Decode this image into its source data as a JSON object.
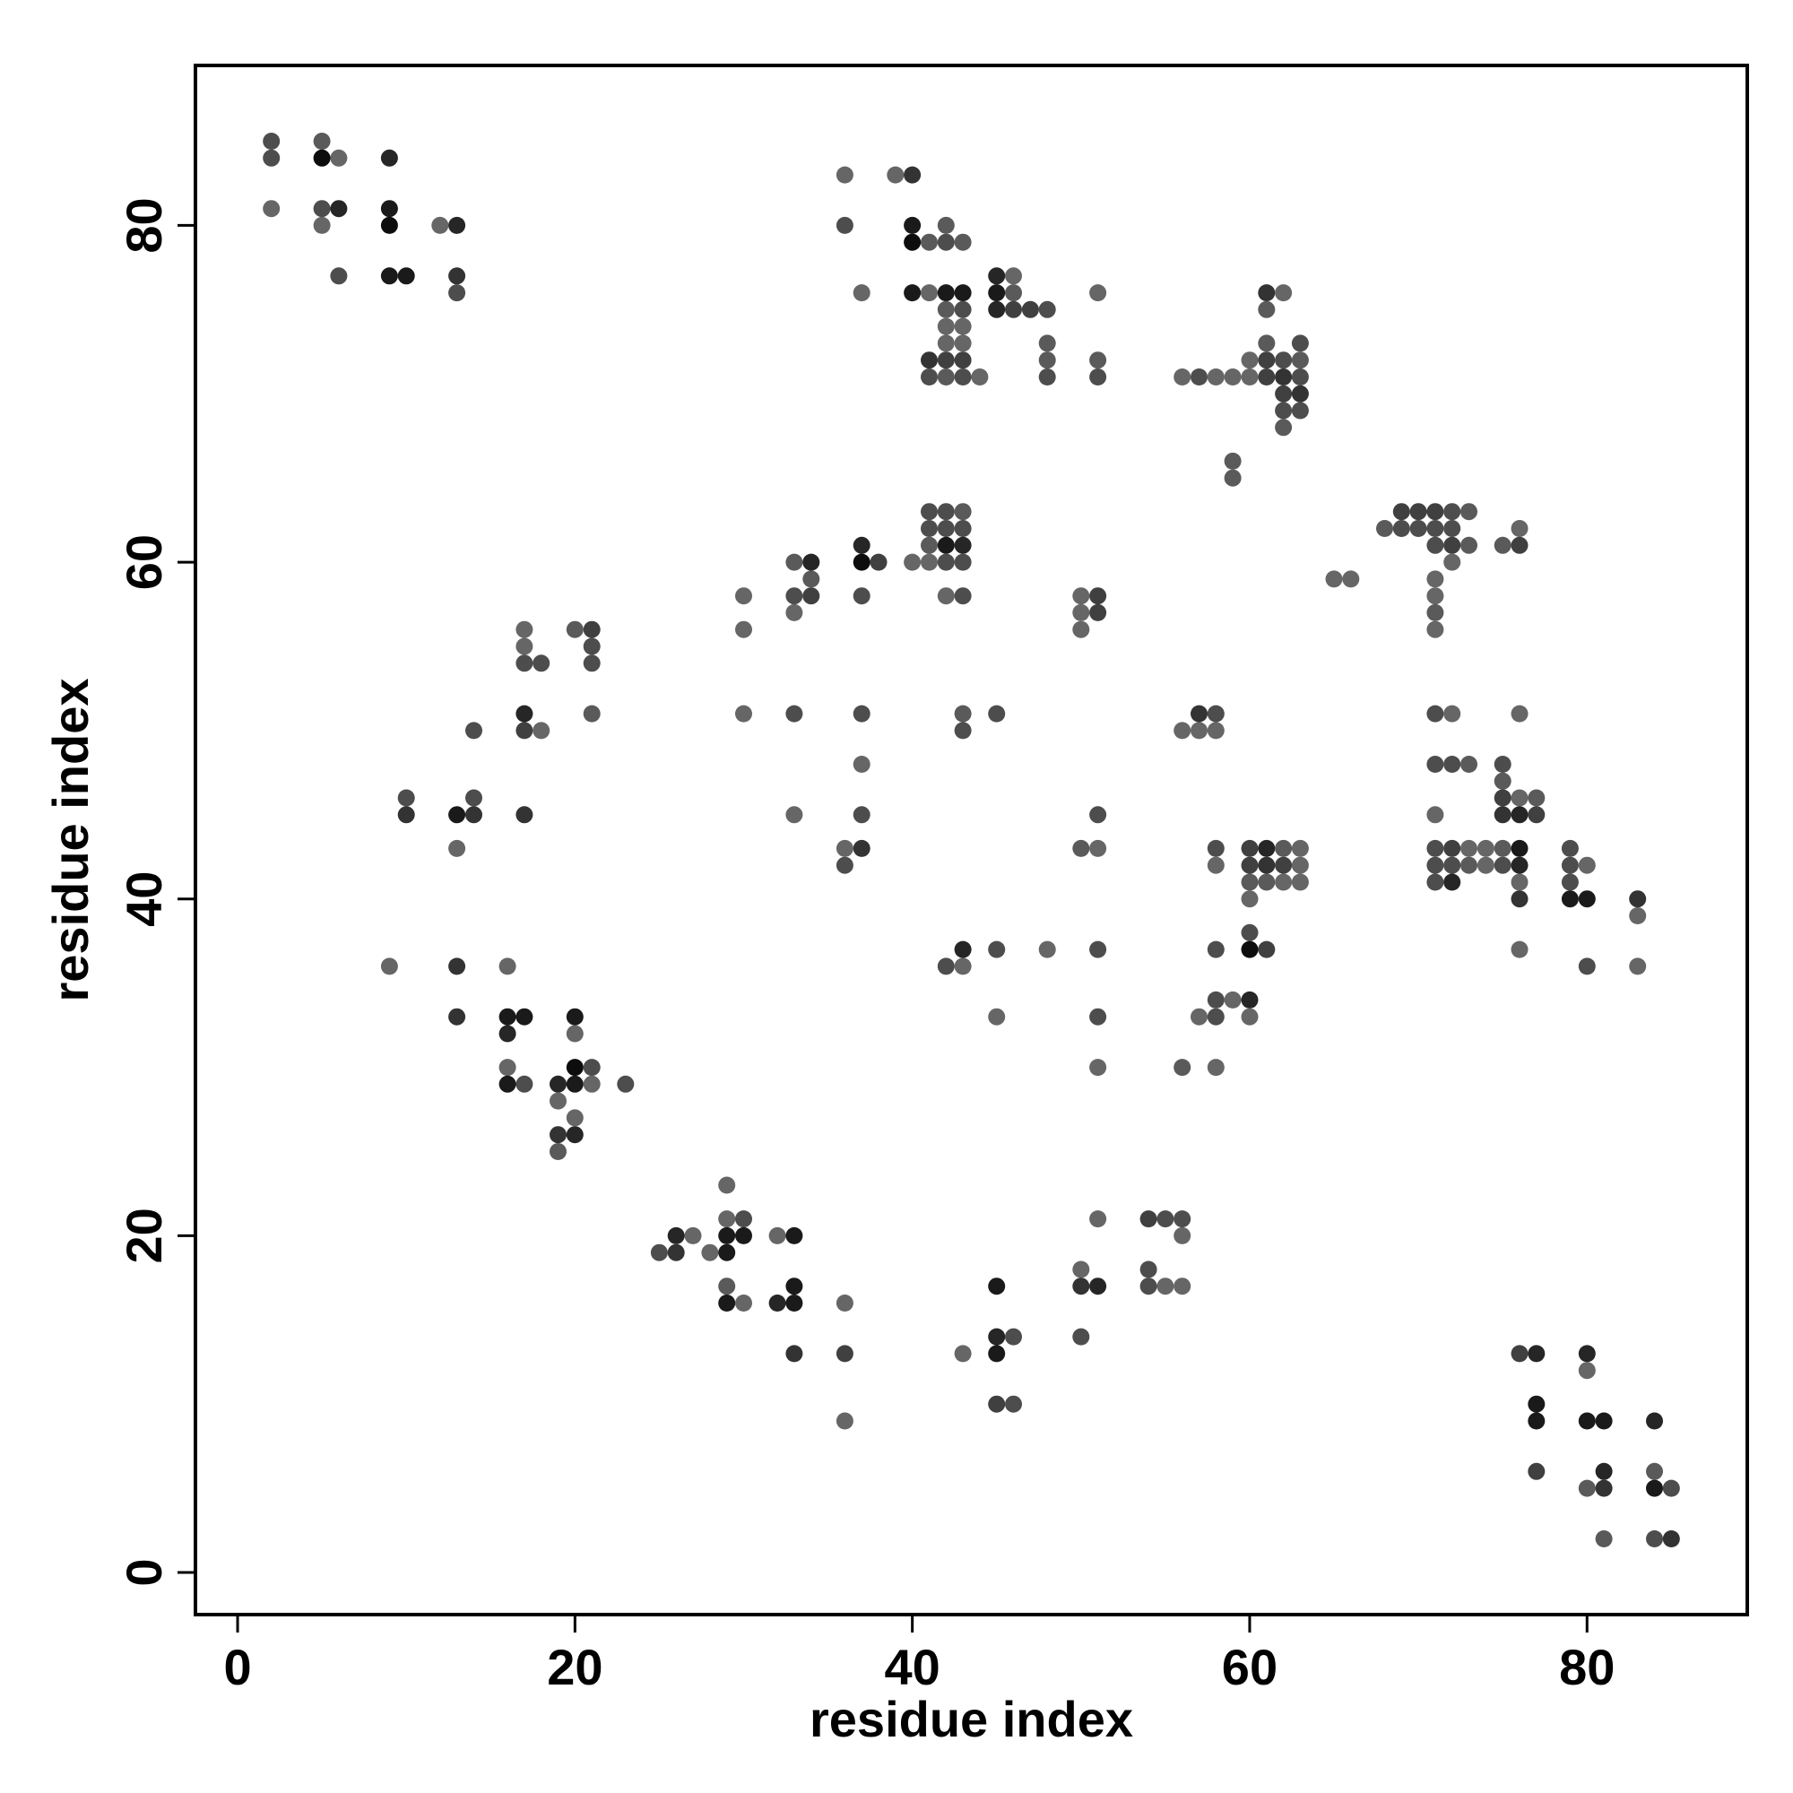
{
  "chart_data": {
    "type": "scatter",
    "title": "",
    "xlabel": "residue index",
    "ylabel": "residue index",
    "xlim": [
      -2.5,
      89.5
    ],
    "ylim": [
      -2.5,
      89.5
    ],
    "xticks": [
      0,
      20,
      40,
      60,
      80
    ],
    "yticks": [
      0,
      20,
      40,
      60,
      80
    ],
    "grid": false,
    "legend": "none",
    "shade_note": "gray level of each point: 0 = black, 1 = light gray",
    "points": [
      [
        2,
        85,
        0.6
      ],
      [
        2,
        84,
        0.6
      ],
      [
        2,
        81,
        0.8
      ],
      [
        5,
        85,
        0.7
      ],
      [
        5,
        84,
        0.1
      ],
      [
        5,
        81,
        0.6
      ],
      [
        5,
        80,
        0.8
      ],
      [
        6,
        84,
        0.8
      ],
      [
        6,
        81,
        0.3
      ],
      [
        6,
        77,
        0.6
      ],
      [
        9,
        84,
        0.3
      ],
      [
        9,
        81,
        0.2
      ],
      [
        9,
        80,
        0.1
      ],
      [
        9,
        77,
        0.2
      ],
      [
        10,
        77,
        0.2
      ],
      [
        12,
        80,
        0.8
      ],
      [
        13,
        80,
        0.3
      ],
      [
        13,
        77,
        0.4
      ],
      [
        13,
        76,
        0.6
      ],
      [
        36,
        83,
        0.8
      ],
      [
        36,
        80,
        0.6
      ],
      [
        37,
        76,
        0.8
      ],
      [
        39,
        83,
        0.8
      ],
      [
        40,
        83,
        0.4
      ],
      [
        40,
        80,
        0.2
      ],
      [
        40,
        79,
        0.1
      ],
      [
        40,
        76,
        0.2
      ],
      [
        41,
        79,
        0.7
      ],
      [
        41,
        76,
        0.8
      ],
      [
        42,
        80,
        0.7
      ],
      [
        42,
        79,
        0.6
      ],
      [
        42,
        76,
        0.2
      ],
      [
        42,
        75,
        0.7
      ],
      [
        42,
        74,
        0.8
      ],
      [
        42,
        73,
        0.8
      ],
      [
        42,
        72,
        0.5
      ],
      [
        42,
        71,
        0.7
      ],
      [
        41,
        72,
        0.4
      ],
      [
        41,
        71,
        0.6
      ],
      [
        43,
        79,
        0.7
      ],
      [
        43,
        76,
        0.2
      ],
      [
        43,
        75,
        0.6
      ],
      [
        43,
        74,
        0.8
      ],
      [
        43,
        73,
        0.8
      ],
      [
        43,
        72,
        0.5
      ],
      [
        43,
        71,
        0.6
      ],
      [
        44,
        71,
        0.8
      ],
      [
        45,
        77,
        0.3
      ],
      [
        45,
        76,
        0.2
      ],
      [
        45,
        75,
        0.3
      ],
      [
        46,
        77,
        0.8
      ],
      [
        46,
        76,
        0.7
      ],
      [
        46,
        75,
        0.5
      ],
      [
        47,
        75,
        0.5
      ],
      [
        48,
        75,
        0.6
      ],
      [
        48,
        73,
        0.7
      ],
      [
        48,
        72,
        0.7
      ],
      [
        48,
        71,
        0.6
      ],
      [
        51,
        76,
        0.8
      ],
      [
        51,
        72,
        0.7
      ],
      [
        51,
        71,
        0.6
      ],
      [
        56,
        71,
        0.8
      ],
      [
        57,
        71,
        0.6
      ],
      [
        58,
        71,
        0.8
      ],
      [
        59,
        71,
        0.8
      ],
      [
        59,
        66,
        0.7
      ],
      [
        59,
        65,
        0.7
      ],
      [
        60,
        72,
        0.8
      ],
      [
        60,
        71,
        0.8
      ],
      [
        61,
        76,
        0.4
      ],
      [
        61,
        75,
        0.7
      ],
      [
        61,
        73,
        0.7
      ],
      [
        61,
        72,
        0.5
      ],
      [
        61,
        71,
        0.5
      ],
      [
        62,
        76,
        0.8
      ],
      [
        62,
        72,
        0.6
      ],
      [
        62,
        71,
        0.4
      ],
      [
        62,
        70,
        0.5
      ],
      [
        62,
        69,
        0.6
      ],
      [
        62,
        68,
        0.7
      ],
      [
        63,
        73,
        0.6
      ],
      [
        63,
        72,
        0.7
      ],
      [
        63,
        71,
        0.6
      ],
      [
        63,
        70,
        0.4
      ],
      [
        63,
        69,
        0.6
      ],
      [
        41,
        63,
        0.6
      ],
      [
        41,
        62,
        0.6
      ],
      [
        41,
        61,
        0.7
      ],
      [
        41,
        60,
        0.8
      ],
      [
        40,
        60,
        0.8
      ],
      [
        42,
        63,
        0.6
      ],
      [
        42,
        62,
        0.6
      ],
      [
        42,
        61,
        0.2
      ],
      [
        42,
        60,
        0.6
      ],
      [
        42,
        58,
        0.8
      ],
      [
        43,
        63,
        0.7
      ],
      [
        43,
        62,
        0.6
      ],
      [
        43,
        61,
        0.3
      ],
      [
        43,
        60,
        0.6
      ],
      [
        43,
        58,
        0.6
      ],
      [
        30,
        58,
        0.8
      ],
      [
        30,
        56,
        0.8
      ],
      [
        33,
        60,
        0.7
      ],
      [
        33,
        58,
        0.6
      ],
      [
        33,
        57,
        0.8
      ],
      [
        34,
        60,
        0.3
      ],
      [
        34,
        59,
        0.7
      ],
      [
        34,
        58,
        0.5
      ],
      [
        37,
        61,
        0.3
      ],
      [
        37,
        60,
        0.1
      ],
      [
        37,
        58,
        0.6
      ],
      [
        38,
        60,
        0.5
      ],
      [
        50,
        58,
        0.8
      ],
      [
        50,
        57,
        0.8
      ],
      [
        50,
        56,
        0.8
      ],
      [
        51,
        58,
        0.5
      ],
      [
        51,
        57,
        0.5
      ],
      [
        65,
        59,
        0.8
      ],
      [
        66,
        59,
        0.8
      ],
      [
        68,
        62,
        0.7
      ],
      [
        69,
        63,
        0.5
      ],
      [
        69,
        62,
        0.6
      ],
      [
        70,
        63,
        0.5
      ],
      [
        70,
        62,
        0.6
      ],
      [
        71,
        63,
        0.5
      ],
      [
        71,
        62,
        0.6
      ],
      [
        71,
        61,
        0.6
      ],
      [
        71,
        59,
        0.8
      ],
      [
        71,
        58,
        0.8
      ],
      [
        71,
        57,
        0.7
      ],
      [
        71,
        56,
        0.8
      ],
      [
        72,
        63,
        0.6
      ],
      [
        72,
        62,
        0.6
      ],
      [
        72,
        61,
        0.5
      ],
      [
        72,
        60,
        0.8
      ],
      [
        73,
        63,
        0.7
      ],
      [
        73,
        61,
        0.7
      ],
      [
        75,
        61,
        0.7
      ],
      [
        76,
        62,
        0.8
      ],
      [
        76,
        61,
        0.5
      ],
      [
        17,
        56,
        0.8
      ],
      [
        17,
        55,
        0.8
      ],
      [
        17,
        54,
        0.6
      ],
      [
        17,
        51,
        0.3
      ],
      [
        17,
        50,
        0.5
      ],
      [
        18,
        54,
        0.6
      ],
      [
        18,
        50,
        0.8
      ],
      [
        20,
        56,
        0.7
      ],
      [
        21,
        56,
        0.5
      ],
      [
        21,
        55,
        0.6
      ],
      [
        21,
        54,
        0.6
      ],
      [
        21,
        51,
        0.7
      ],
      [
        14,
        50,
        0.6
      ],
      [
        10,
        46,
        0.6
      ],
      [
        10,
        45,
        0.4
      ],
      [
        13,
        45,
        0.2
      ],
      [
        13,
        43,
        0.8
      ],
      [
        14,
        46,
        0.6
      ],
      [
        14,
        45,
        0.4
      ],
      [
        17,
        45,
        0.4
      ],
      [
        30,
        51,
        0.8
      ],
      [
        33,
        51,
        0.6
      ],
      [
        33,
        45,
        0.8
      ],
      [
        36,
        43,
        0.8
      ],
      [
        36,
        42,
        0.6
      ],
      [
        37,
        51,
        0.6
      ],
      [
        37,
        48,
        0.8
      ],
      [
        37,
        45,
        0.6
      ],
      [
        37,
        43,
        0.4
      ],
      [
        43,
        51,
        0.7
      ],
      [
        43,
        50,
        0.6
      ],
      [
        45,
        51,
        0.6
      ],
      [
        51,
        45,
        0.6
      ],
      [
        50,
        43,
        0.7
      ],
      [
        51,
        43,
        0.8
      ],
      [
        56,
        50,
        0.8
      ],
      [
        57,
        51,
        0.4
      ],
      [
        57,
        50,
        0.8
      ],
      [
        58,
        51,
        0.6
      ],
      [
        58,
        50,
        0.8
      ],
      [
        58,
        43,
        0.6
      ],
      [
        58,
        42,
        0.8
      ],
      [
        60,
        43,
        0.5
      ],
      [
        60,
        42,
        0.5
      ],
      [
        60,
        41,
        0.7
      ],
      [
        60,
        40,
        0.8
      ],
      [
        61,
        43,
        0.3
      ],
      [
        61,
        42,
        0.4
      ],
      [
        61,
        41,
        0.7
      ],
      [
        62,
        43,
        0.7
      ],
      [
        62,
        42,
        0.5
      ],
      [
        62,
        41,
        0.8
      ],
      [
        63,
        43,
        0.8
      ],
      [
        63,
        42,
        0.8
      ],
      [
        63,
        41,
        0.8
      ],
      [
        71,
        51,
        0.6
      ],
      [
        71,
        48,
        0.6
      ],
      [
        71,
        45,
        0.8
      ],
      [
        71,
        43,
        0.6
      ],
      [
        71,
        42,
        0.6
      ],
      [
        71,
        41,
        0.6
      ],
      [
        72,
        51,
        0.8
      ],
      [
        72,
        48,
        0.6
      ],
      [
        72,
        43,
        0.5
      ],
      [
        72,
        42,
        0.6
      ],
      [
        72,
        41,
        0.3
      ],
      [
        73,
        48,
        0.7
      ],
      [
        73,
        43,
        0.8
      ],
      [
        73,
        42,
        0.7
      ],
      [
        74,
        43,
        0.8
      ],
      [
        74,
        42,
        0.8
      ],
      [
        75,
        48,
        0.6
      ],
      [
        75,
        47,
        0.7
      ],
      [
        75,
        46,
        0.5
      ],
      [
        75,
        45,
        0.4
      ],
      [
        75,
        43,
        0.7
      ],
      [
        75,
        42,
        0.6
      ],
      [
        76,
        51,
        0.8
      ],
      [
        76,
        46,
        0.8
      ],
      [
        76,
        45,
        0.3
      ],
      [
        76,
        43,
        0.2
      ],
      [
        76,
        42,
        0.3
      ],
      [
        76,
        41,
        0.8
      ],
      [
        76,
        40,
        0.4
      ],
      [
        76,
        37,
        0.8
      ],
      [
        77,
        46,
        0.7
      ],
      [
        77,
        45,
        0.5
      ],
      [
        79,
        43,
        0.6
      ],
      [
        79,
        42,
        0.6
      ],
      [
        79,
        41,
        0.6
      ],
      [
        79,
        40,
        0.2
      ],
      [
        80,
        42,
        0.8
      ],
      [
        80,
        40,
        0.2
      ],
      [
        80,
        36,
        0.6
      ],
      [
        83,
        40,
        0.4
      ],
      [
        83,
        39,
        0.8
      ],
      [
        83,
        36,
        0.8
      ],
      [
        9,
        36,
        0.8
      ],
      [
        13,
        36,
        0.4
      ],
      [
        13,
        33,
        0.4
      ],
      [
        16,
        36,
        0.8
      ],
      [
        16,
        33,
        0.2
      ],
      [
        16,
        32,
        0.3
      ],
      [
        16,
        30,
        0.8
      ],
      [
        16,
        29,
        0.2
      ],
      [
        17,
        33,
        0.2
      ],
      [
        17,
        29,
        0.6
      ],
      [
        19,
        29,
        0.3
      ],
      [
        19,
        28,
        0.8
      ],
      [
        19,
        26,
        0.4
      ],
      [
        19,
        25,
        0.7
      ],
      [
        20,
        33,
        0.2
      ],
      [
        20,
        32,
        0.8
      ],
      [
        20,
        30,
        0.1
      ],
      [
        20,
        29,
        0.2
      ],
      [
        20,
        27,
        0.8
      ],
      [
        20,
        26,
        0.3
      ],
      [
        21,
        30,
        0.6
      ],
      [
        21,
        29,
        0.8
      ],
      [
        23,
        29,
        0.6
      ],
      [
        42,
        36,
        0.6
      ],
      [
        43,
        37,
        0.3
      ],
      [
        43,
        36,
        0.8
      ],
      [
        45,
        37,
        0.6
      ],
      [
        45,
        33,
        0.8
      ],
      [
        48,
        37,
        0.8
      ],
      [
        51,
        37,
        0.6
      ],
      [
        51,
        33,
        0.6
      ],
      [
        51,
        30,
        0.8
      ],
      [
        56,
        30,
        0.7
      ],
      [
        57,
        33,
        0.8
      ],
      [
        58,
        37,
        0.6
      ],
      [
        58,
        34,
        0.6
      ],
      [
        58,
        33,
        0.6
      ],
      [
        58,
        30,
        0.8
      ],
      [
        59,
        34,
        0.8
      ],
      [
        60,
        38,
        0.6
      ],
      [
        60,
        37,
        0.1
      ],
      [
        60,
        34,
        0.3
      ],
      [
        60,
        33,
        0.8
      ],
      [
        61,
        37,
        0.5
      ],
      [
        25,
        19,
        0.6
      ],
      [
        26,
        20,
        0.3
      ],
      [
        26,
        19,
        0.4
      ],
      [
        27,
        20,
        0.8
      ],
      [
        28,
        19,
        0.8
      ],
      [
        29,
        23,
        0.8
      ],
      [
        29,
        21,
        0.8
      ],
      [
        29,
        20,
        0.2
      ],
      [
        29,
        19,
        0.2
      ],
      [
        29,
        17,
        0.7
      ],
      [
        29,
        16,
        0.2
      ],
      [
        30,
        21,
        0.6
      ],
      [
        30,
        20,
        0.2
      ],
      [
        30,
        16,
        0.8
      ],
      [
        32,
        20,
        0.8
      ],
      [
        32,
        16,
        0.3
      ],
      [
        33,
        20,
        0.2
      ],
      [
        33,
        17,
        0.2
      ],
      [
        33,
        16,
        0.2
      ],
      [
        33,
        13,
        0.4
      ],
      [
        36,
        16,
        0.8
      ],
      [
        36,
        13,
        0.5
      ],
      [
        36,
        9,
        0.8
      ],
      [
        43,
        13,
        0.8
      ],
      [
        45,
        17,
        0.2
      ],
      [
        45,
        14,
        0.3
      ],
      [
        45,
        13,
        0.2
      ],
      [
        45,
        10,
        0.5
      ],
      [
        46,
        14,
        0.6
      ],
      [
        46,
        10,
        0.6
      ],
      [
        50,
        18,
        0.8
      ],
      [
        50,
        17,
        0.4
      ],
      [
        50,
        14,
        0.6
      ],
      [
        51,
        21,
        0.8
      ],
      [
        51,
        17,
        0.3
      ],
      [
        54,
        21,
        0.5
      ],
      [
        54,
        18,
        0.6
      ],
      [
        54,
        17,
        0.6
      ],
      [
        55,
        21,
        0.6
      ],
      [
        55,
        17,
        0.8
      ],
      [
        56,
        21,
        0.6
      ],
      [
        56,
        20,
        0.8
      ],
      [
        56,
        17,
        0.8
      ],
      [
        76,
        13,
        0.5
      ],
      [
        77,
        13,
        0.3
      ],
      [
        77,
        10,
        0.2
      ],
      [
        77,
        9,
        0.2
      ],
      [
        77,
        6,
        0.5
      ],
      [
        80,
        13,
        0.3
      ],
      [
        80,
        12,
        0.8
      ],
      [
        80,
        9,
        0.2
      ],
      [
        80,
        5,
        0.7
      ],
      [
        81,
        9,
        0.2
      ],
      [
        81,
        6,
        0.3
      ],
      [
        81,
        5,
        0.4
      ],
      [
        81,
        2,
        0.7
      ],
      [
        84,
        9,
        0.3
      ],
      [
        84,
        6,
        0.7
      ],
      [
        84,
        5,
        0.2
      ],
      [
        84,
        2,
        0.6
      ],
      [
        85,
        5,
        0.6
      ],
      [
        85,
        2,
        0.4
      ]
    ]
  }
}
